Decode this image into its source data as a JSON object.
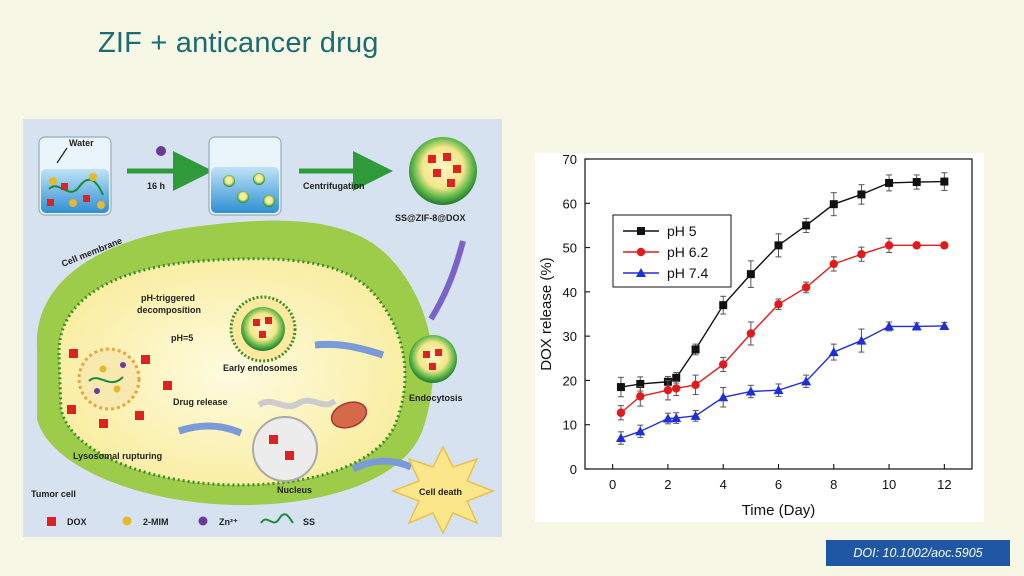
{
  "slide": {
    "title": "ZIF + anticancer drug",
    "doi": "DOI: 10.1002/aoc.5905"
  },
  "schematic": {
    "labels": {
      "water": "Water",
      "hours": "16 h",
      "centrifugation": "Centrifugation",
      "product": "SS@ZIF-8@DOX",
      "cell_membrane": "Cell membrane",
      "ph_triggered_1": "pH-triggered",
      "ph_triggered_2": "decomposition",
      "ph5": "pH=5",
      "early_endosomes": "Early endosomes",
      "endocytosis": "Endocytosis",
      "drug_release": "Drug release",
      "lysosomal_rupturing": "Lysosomal rupturing",
      "nucleus": "Nucleus",
      "cell_death": "Cell death",
      "tumor_cell": "Tumor cell"
    },
    "legend": [
      {
        "label": "DOX",
        "icon": "dox-cube-icon"
      },
      {
        "label": "2-MIM",
        "icon": "mim-sphere-icon"
      },
      {
        "label": "Zn²⁺",
        "icon": "zinc-ion-icon"
      },
      {
        "label": "SS",
        "icon": "ss-chain-icon"
      }
    ]
  },
  "chart_data": {
    "type": "line",
    "xlabel": "Time (Day)",
    "ylabel": "DOX release (%)",
    "xlim": [
      -1,
      13
    ],
    "ylim": [
      0,
      70
    ],
    "xticks": [
      0,
      2,
      4,
      6,
      8,
      10,
      12
    ],
    "yticks": [
      0,
      10,
      20,
      30,
      40,
      50,
      60,
      70
    ],
    "legend_position": "upper-left",
    "series": [
      {
        "name": "pH 5",
        "color": "#111111",
        "marker": "square",
        "x": [
          0.3,
          1,
          2,
          2.3,
          3,
          4,
          5,
          6,
          7,
          8,
          9,
          10,
          11,
          12
        ],
        "y": [
          18.5,
          19.2,
          19.7,
          20.6,
          27,
          37,
          44,
          50.5,
          55,
          59.8,
          62,
          64.6,
          64.8,
          64.9
        ],
        "err": [
          2.2,
          1.6,
          1.2,
          1.2,
          1.2,
          2,
          3,
          2.6,
          1.6,
          2.6,
          2.2,
          1.8,
          1.6,
          2
        ]
      },
      {
        "name": "pH 6.2",
        "color": "#e01b1b",
        "marker": "circle",
        "x": [
          0.3,
          1,
          2,
          2.3,
          3,
          4,
          5,
          6,
          7,
          8,
          9,
          10,
          11,
          12
        ],
        "y": [
          12.7,
          16.4,
          17.8,
          18.2,
          19,
          23.6,
          30.6,
          37.2,
          41,
          46.3,
          48.5,
          50.5,
          50.5,
          50.5
        ],
        "err": [
          1.6,
          2.2,
          2.2,
          1.6,
          2.2,
          1.6,
          2.6,
          1.2,
          1.2,
          1.6,
          1.6,
          1.6,
          0.6,
          0.6
        ]
      },
      {
        "name": "pH 7.4",
        "color": "#1f2fd8",
        "marker": "triangle",
        "x": [
          0.3,
          1,
          2,
          2.3,
          3,
          4,
          5,
          6,
          7,
          8,
          9,
          10,
          11,
          12
        ],
        "y": [
          7,
          8.5,
          11.4,
          11.5,
          12,
          16.2,
          17.5,
          17.8,
          19.8,
          26.4,
          29,
          32.2,
          32.2,
          32.3
        ],
        "err": [
          1.4,
          1.4,
          1.2,
          1.2,
          1.2,
          2.2,
          1.4,
          1.4,
          1.4,
          1.8,
          2.6,
          1,
          0.8,
          0.8
        ]
      }
    ]
  }
}
